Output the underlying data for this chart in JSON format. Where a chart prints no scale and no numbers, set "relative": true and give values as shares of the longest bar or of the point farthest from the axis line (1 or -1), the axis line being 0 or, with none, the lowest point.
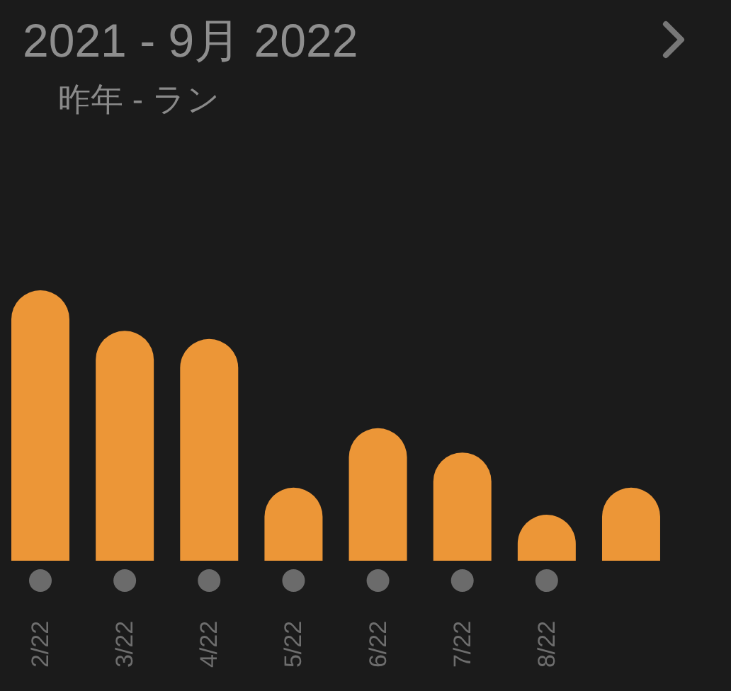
{
  "chart_data": {
    "type": "bar",
    "title": "2021 - 9月 2022",
    "subtitle": "昨年 - ラン",
    "categories": [
      "2/22",
      "3/22",
      "4/22",
      "5/22",
      "6/22",
      "7/22",
      "8/22",
      null
    ],
    "values": [
      1,
      0.85,
      0.82,
      0.27,
      0.49,
      0.4,
      0.17,
      0.27
    ],
    "color": "#ec9637",
    "relative": true
  }
}
